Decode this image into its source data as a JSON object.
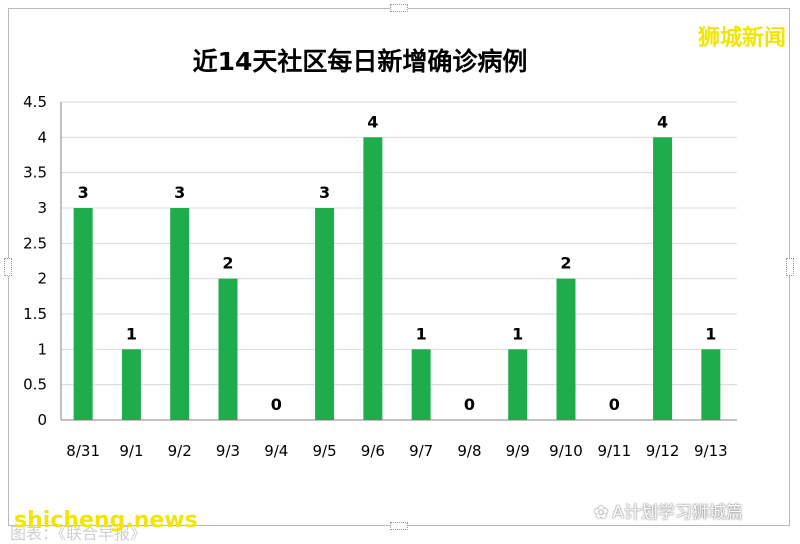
{
  "brand": "狮城新闻",
  "site": "shicheng.news",
  "source": "A计划学习狮城篇",
  "source_icon": "wechat-icon",
  "footer_note": "图表：《联合早报》",
  "colors": {
    "bar": "#1fac4d",
    "grid": "#d9d9d9",
    "axis": "#868686",
    "brand": "#f2e600"
  },
  "chart_data": {
    "type": "bar",
    "title": "近14天社区每日新增确诊病例",
    "xlabel": "",
    "ylabel": "",
    "categories": [
      "8/31",
      "9/1",
      "9/2",
      "9/3",
      "9/4",
      "9/5",
      "9/6",
      "9/7",
      "9/8",
      "9/9",
      "9/10",
      "9/11",
      "9/12",
      "9/13"
    ],
    "values": [
      3,
      1,
      3,
      2,
      0,
      3,
      4,
      1,
      0,
      1,
      2,
      0,
      4,
      1
    ],
    "ylim": [
      0,
      4.5
    ],
    "yticks": [
      "0",
      "0.5",
      "1",
      "1.5",
      "2",
      "2.5",
      "3",
      "3.5",
      "4",
      "4.5"
    ],
    "grid": true,
    "data_labels": true
  }
}
